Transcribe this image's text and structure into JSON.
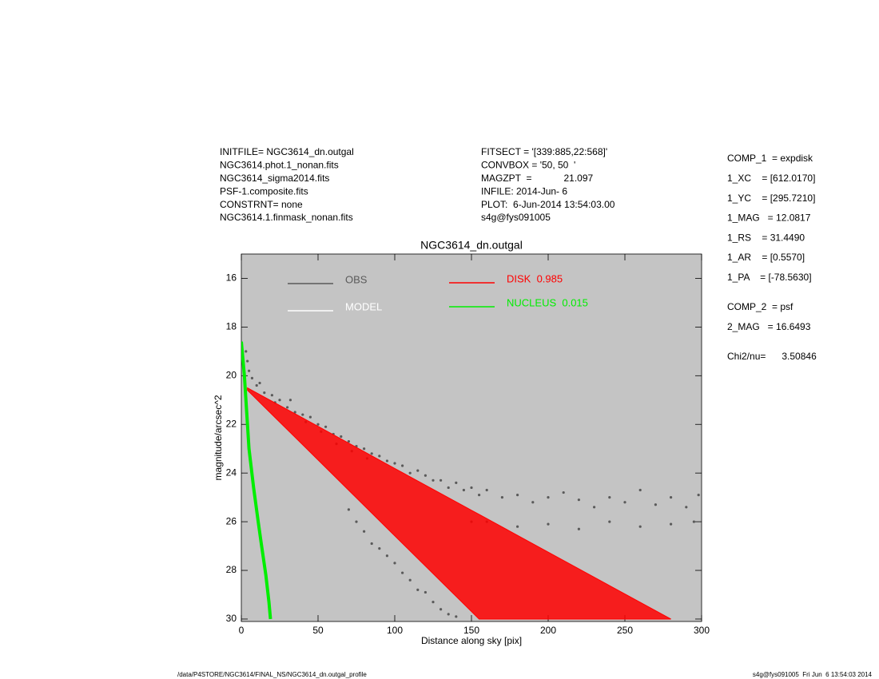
{
  "header": {
    "left": [
      "INITFILE= NGC3614_dn.outgal",
      "NGC3614.phot.1_nonan.fits",
      "NGC3614_sigma2014.fits",
      "PSF-1.composite.fits",
      "CONSTRNT= none",
      "NGC3614.1.finmask_nonan.fits"
    ],
    "middle": [
      "FITSECT = '[339:885,22:568]'",
      "CONVBOX = '50, 50  '",
      "MAGZPT  =            21.097",
      "INFILE: 2014-Jun- 6",
      "PLOT:  6-Jun-2014 13:54:03.00",
      "s4g@fys091005"
    ]
  },
  "params": [
    [
      "COMP_1  = expdisk",
      "1_XC    = [612.0170]",
      "1_YC    = [295.7210]",
      "1_MAG   = 12.0817",
      "1_RS    = 31.4490",
      "1_AR    = [0.5570]",
      "1_PA    = [-78.5630]"
    ],
    [
      "COMP_2  = psf",
      "2_MAG   = 16.6493"
    ],
    [
      "Chi2/nu=      3.50846"
    ]
  ],
  "footer": {
    "left": "/data/P4STORE/NGC3614/FINAL_NS/NGC3614_dn.outgal_profile",
    "right": "s4g@fys091005  Fri Jun  6 13:54:03 2014"
  },
  "chart_data": {
    "type": "scatter",
    "title": "NGC3614_dn.outgal",
    "x_label": "Distance along sky [pix]",
    "y_label": "magnitude/arcsec^2",
    "xlim": [
      0,
      300
    ],
    "ylim": [
      30.1,
      15
    ],
    "xticks": [
      0,
      50,
      100,
      150,
      200,
      250,
      300
    ],
    "yticks": [
      16,
      18,
      20,
      22,
      24,
      26,
      28,
      30
    ],
    "background": "#c4c4c4",
    "series": [
      {
        "name": "OBS",
        "type": "points",
        "color": "#5a5a5a",
        "x": [
          3,
          4,
          5,
          7,
          10,
          12,
          15,
          20,
          22,
          25,
          30,
          32,
          35,
          40,
          42,
          45,
          50,
          52,
          55,
          60,
          62,
          65,
          70,
          72,
          75,
          80,
          82,
          85,
          90,
          95,
          100,
          105,
          110,
          115,
          120,
          125,
          130,
          135,
          140,
          145,
          150,
          155,
          160,
          170,
          180,
          190,
          200,
          210,
          220,
          230,
          240,
          250,
          260,
          270,
          280,
          290,
          298,
          70,
          75,
          80,
          85,
          90,
          95,
          100,
          105,
          110,
          115,
          120,
          125,
          130,
          135,
          140,
          150,
          160,
          180,
          200,
          220,
          240,
          260,
          280,
          295
        ],
        "values": [
          19.0,
          19.4,
          19.8,
          20.1,
          20.4,
          20.3,
          20.7,
          20.8,
          21.1,
          21.0,
          21.3,
          21.0,
          21.5,
          21.6,
          21.9,
          21.7,
          22.0,
          22.3,
          22.1,
          22.4,
          22.8,
          22.5,
          22.7,
          23.1,
          22.9,
          23.0,
          23.4,
          23.2,
          23.3,
          23.5,
          23.6,
          23.7,
          24.0,
          23.9,
          24.1,
          24.3,
          24.3,
          24.6,
          24.4,
          24.7,
          24.6,
          24.9,
          24.7,
          25.0,
          24.9,
          25.2,
          25.0,
          24.8,
          25.1,
          25.4,
          25.0,
          25.2,
          24.7,
          25.3,
          25.0,
          25.4,
          24.9,
          25.5,
          26.0,
          26.4,
          26.9,
          27.1,
          27.4,
          27.7,
          28.1,
          28.4,
          28.8,
          28.9,
          29.3,
          29.6,
          29.8,
          29.9,
          26.0,
          26.0,
          26.2,
          26.1,
          26.3,
          26.0,
          26.2,
          26.1,
          26.0
        ]
      },
      {
        "name": "MODEL",
        "type": "points",
        "color": "#ffffff",
        "x": [],
        "values": []
      },
      {
        "name": "DISK  0.985",
        "type": "band",
        "color": "#ff0000",
        "x": [
          4,
          50,
          100,
          150,
          155,
          200,
          250,
          280
        ],
        "values": [
          20.5,
          22.08,
          23.81,
          25.53,
          25.7,
          27.25,
          28.97,
          30.0
        ],
        "faint": [
          20.6,
          23.46,
          26.58,
          29.69,
          30.0,
          null,
          null,
          null
        ]
      },
      {
        "name": "NUCLEUS  0.015",
        "type": "line",
        "color": "#00ee00",
        "x": [
          0,
          2,
          5,
          8,
          11,
          13,
          16,
          18,
          19
        ],
        "values": [
          18.6,
          20.0,
          23.0,
          24.6,
          26.0,
          26.9,
          28.2,
          29.3,
          30.0
        ]
      }
    ]
  }
}
